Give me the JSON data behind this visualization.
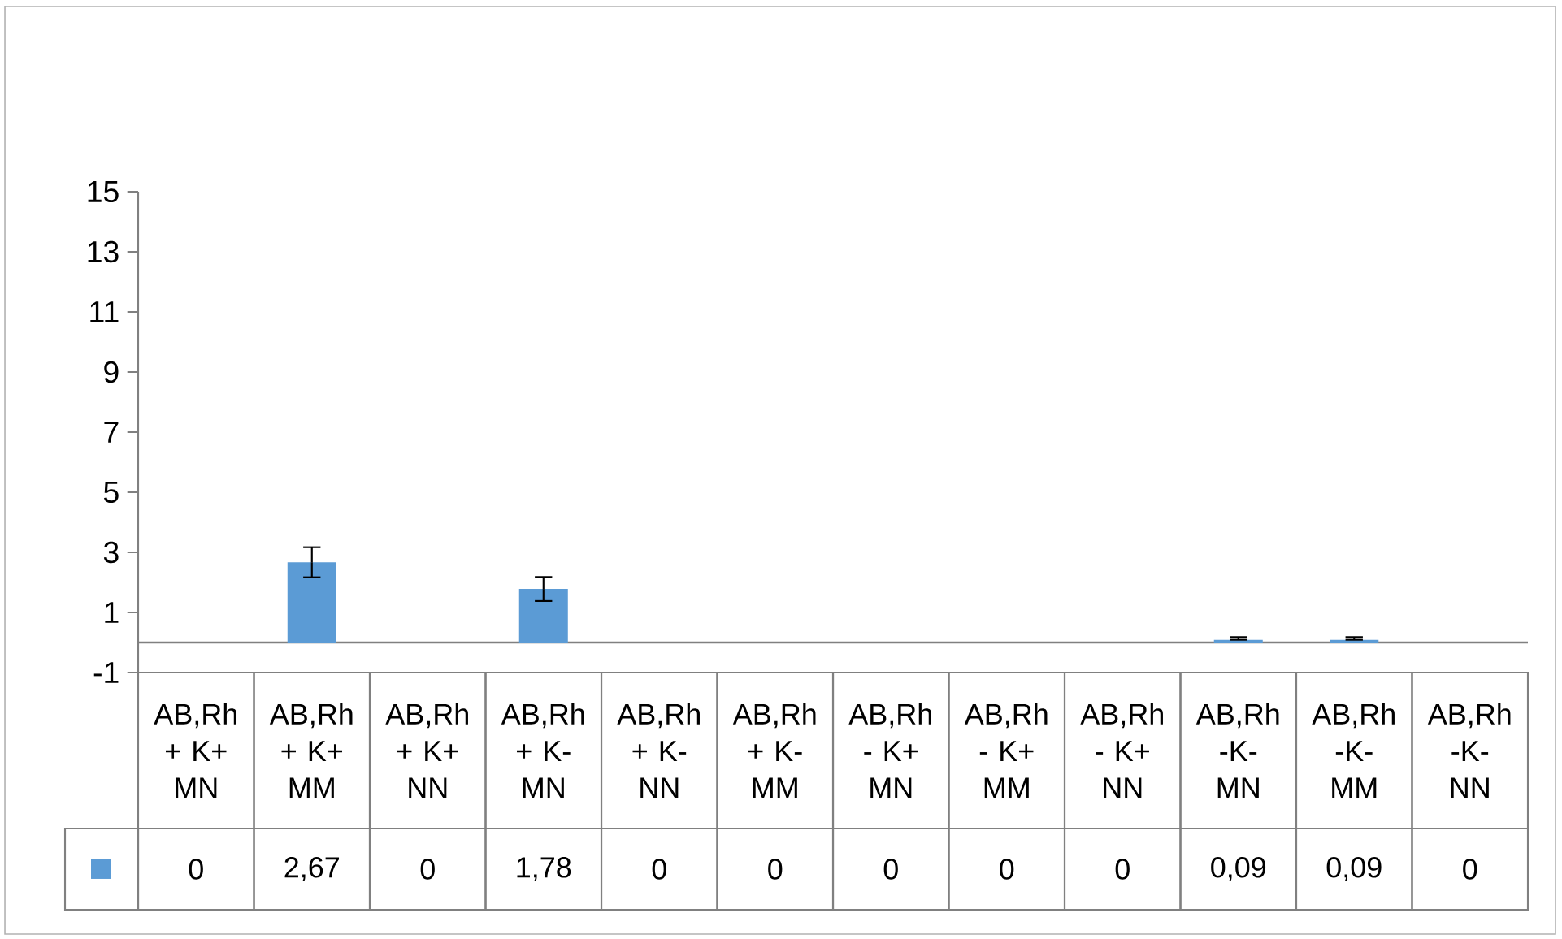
{
  "chart_data": {
    "type": "bar",
    "categories": [
      "AB,Rh + K+ MN",
      "AB,Rh + K+ MM",
      "AB,Rh + K+ NN",
      "AB,Rh + K- MN",
      "AB,Rh + K- NN",
      "AB,Rh + K- MM",
      "AB,Rh - K+ MN",
      "AB,Rh - K+ MM",
      "AB,Rh - K+ NN",
      "AB,Rh -K- MN",
      "AB,Rh -K- MM",
      "AB,Rh -K- NN"
    ],
    "values": [
      0,
      2.67,
      0,
      1.78,
      0,
      0,
      0,
      0,
      0,
      0.09,
      0.09,
      0
    ],
    "errors": [
      null,
      0.5,
      null,
      0.4,
      null,
      null,
      null,
      null,
      null,
      [
        0.09,
        0.18
      ],
      [
        0.09,
        0.18
      ],
      null
    ],
    "value_labels": [
      "0",
      "2,67",
      "0",
      "1,78",
      "0",
      "0",
      "0",
      "0",
      "0",
      "0,09",
      "0,09",
      "0"
    ],
    "color": "#5b9bd5",
    "ylim": [
      -1,
      15
    ],
    "yticks": [
      -1,
      1,
      3,
      5,
      7,
      9,
      11,
      13,
      15
    ]
  }
}
